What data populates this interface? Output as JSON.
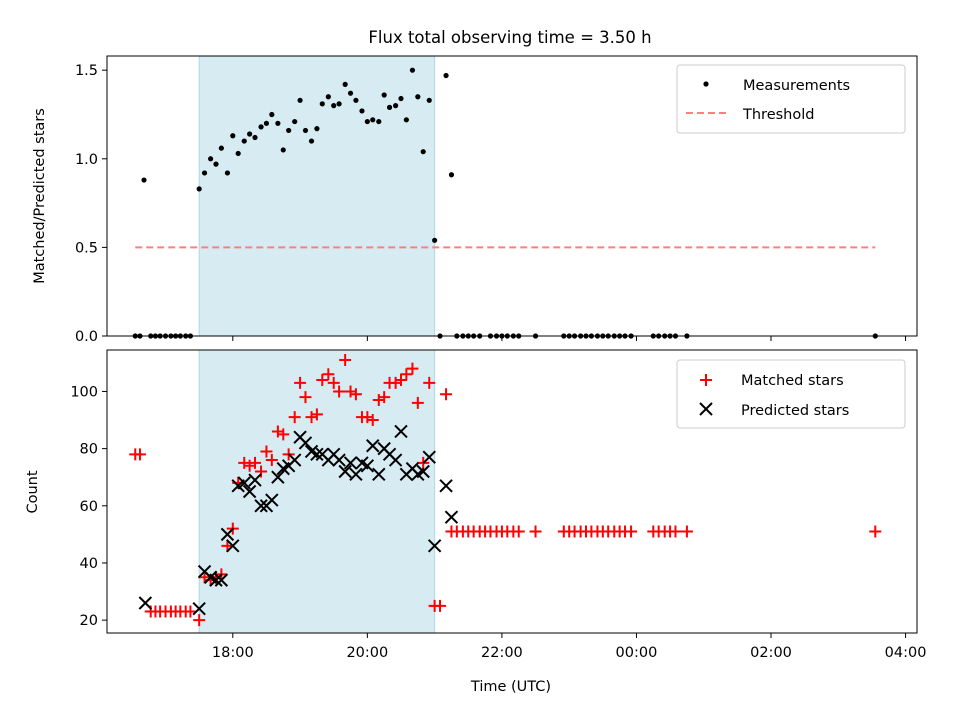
{
  "chart_data": [
    {
      "type": "scatter",
      "title": "Flux total observing time = 3.50 h",
      "xlabel": "",
      "ylabel": "Matched/Predicted stars",
      "xlim": [
        16.13,
        28.17
      ],
      "ylim": [
        0,
        1.58
      ],
      "yticks": [
        0,
        0.5,
        1.0,
        1.5
      ],
      "ytick_labels": [
        "0.0",
        "0.5",
        "1.0",
        "1.5"
      ],
      "xticks": [
        18,
        20,
        22,
        24,
        26,
        28
      ],
      "highlight_span": [
        17.5,
        21.0
      ],
      "threshold": {
        "name": "Threshold",
        "value": 0.5,
        "x_range": [
          16.55,
          27.55
        ],
        "color": "#ff7f7f"
      },
      "legend": [
        "Measurements",
        "Threshold"
      ],
      "series": [
        {
          "name": "Measurements",
          "x": [
            16.55,
            16.62,
            16.68,
            16.78,
            16.85,
            16.92,
            17.0,
            17.08,
            17.15,
            17.22,
            17.3,
            17.37,
            17.5,
            17.58,
            17.67,
            17.75,
            17.83,
            17.92,
            18.0,
            18.08,
            18.17,
            18.25,
            18.33,
            18.42,
            18.5,
            18.58,
            18.67,
            18.75,
            18.83,
            18.92,
            19.0,
            19.08,
            19.17,
            19.25,
            19.33,
            19.42,
            19.5,
            19.58,
            19.67,
            19.75,
            19.83,
            19.92,
            20.0,
            20.08,
            20.17,
            20.25,
            20.33,
            20.42,
            20.5,
            20.58,
            20.67,
            20.75,
            20.83,
            20.92,
            21.0,
            21.08,
            21.17,
            21.25,
            21.33,
            21.42,
            21.5,
            21.58,
            21.67,
            21.83,
            21.92,
            22.0,
            22.08,
            22.17,
            22.25,
            22.5,
            22.92,
            23.0,
            23.08,
            23.17,
            23.25,
            23.33,
            23.42,
            23.5,
            23.58,
            23.67,
            23.75,
            23.83,
            23.92,
            24.25,
            24.33,
            24.42,
            24.5,
            24.58,
            24.75,
            27.55
          ],
          "y": [
            0,
            0,
            0.88,
            0,
            0,
            0,
            0,
            0,
            0,
            0,
            0,
            0,
            0.83,
            0.92,
            1.0,
            0.97,
            1.06,
            0.92,
            1.13,
            1.03,
            1.1,
            1.14,
            1.12,
            1.18,
            1.2,
            1.25,
            1.2,
            1.05,
            1.16,
            1.21,
            1.33,
            1.16,
            1.1,
            1.17,
            1.31,
            1.35,
            1.3,
            1.31,
            1.42,
            1.37,
            1.33,
            1.27,
            1.21,
            1.22,
            1.21,
            1.36,
            1.29,
            1.3,
            1.34,
            1.22,
            1.5,
            1.35,
            1.04,
            1.33,
            0.54,
            0,
            1.47,
            0.91,
            0,
            0,
            0,
            0,
            0,
            0,
            0,
            0,
            0,
            0,
            0,
            0,
            0,
            0,
            0,
            0,
            0,
            0,
            0,
            0,
            0,
            0,
            0,
            0,
            0,
            0,
            0,
            0,
            0,
            0,
            0,
            0
          ]
        }
      ]
    },
    {
      "type": "scatter",
      "title": "",
      "xlabel": "Time (UTC)",
      "ylabel": "Count",
      "xlim": [
        16.13,
        28.17
      ],
      "ylim": [
        15.5,
        114.5
      ],
      "yticks": [
        20,
        40,
        60,
        80,
        100
      ],
      "ytick_labels": [
        "20",
        "40",
        "60",
        "80",
        "100"
      ],
      "xticks": [
        18,
        20,
        22,
        24,
        26,
        28
      ],
      "xtick_labels": [
        "18:00",
        "20:00",
        "22:00",
        "00:00",
        "02:00",
        "04:00"
      ],
      "highlight_span": [
        17.5,
        21.0
      ],
      "legend": [
        "Matched stars",
        "Predicted stars"
      ],
      "series": [
        {
          "name": "Matched stars",
          "marker": "+",
          "color": "#ff0000",
          "x": [
            16.55,
            16.62,
            16.78,
            16.85,
            16.92,
            17.0,
            17.08,
            17.15,
            17.22,
            17.3,
            17.37,
            17.5,
            17.58,
            17.67,
            17.75,
            17.83,
            17.92,
            18.0,
            18.08,
            18.17,
            18.25,
            18.33,
            18.42,
            18.5,
            18.58,
            18.67,
            18.75,
            18.83,
            18.92,
            19.0,
            19.08,
            19.17,
            19.25,
            19.33,
            19.42,
            19.5,
            19.58,
            19.67,
            19.75,
            19.83,
            19.92,
            20.0,
            20.08,
            20.17,
            20.25,
            20.33,
            20.42,
            20.5,
            20.58,
            20.67,
            20.75,
            20.83,
            20.92,
            21.0,
            21.08,
            21.17,
            21.25,
            21.33,
            21.42,
            21.5,
            21.58,
            21.67,
            21.75,
            21.83,
            21.92,
            22.0,
            22.08,
            22.17,
            22.25,
            22.5,
            22.92,
            23.0,
            23.08,
            23.17,
            23.25,
            23.33,
            23.42,
            23.5,
            23.58,
            23.67,
            23.75,
            23.83,
            23.92,
            24.25,
            24.33,
            24.42,
            24.5,
            24.58,
            24.75,
            27.55
          ],
          "y": [
            78,
            78,
            23,
            23,
            23,
            23,
            23,
            23,
            23,
            23,
            23,
            20,
            35,
            34,
            35,
            36,
            46,
            52,
            68,
            75,
            74,
            75,
            72,
            79,
            76,
            86,
            85,
            78,
            91,
            103,
            98,
            91,
            92,
            104,
            106,
            103,
            100,
            111,
            100,
            99,
            91,
            91,
            90,
            97,
            98,
            103,
            103,
            104,
            106,
            108,
            96,
            75,
            103,
            25,
            25,
            99,
            51,
            51,
            51,
            51,
            51,
            51,
            51,
            51,
            51,
            51,
            51,
            51,
            51,
            51,
            51,
            51,
            51,
            51,
            51,
            51,
            51,
            51,
            51,
            51,
            51,
            51,
            51,
            51,
            51,
            51,
            51,
            51,
            51,
            51
          ]
        },
        {
          "name": "Predicted stars",
          "marker": "x",
          "color": "#000000",
          "x": [
            16.7,
            17.5,
            17.58,
            17.67,
            17.75,
            17.83,
            17.92,
            18.0,
            18.08,
            18.17,
            18.25,
            18.33,
            18.42,
            18.5,
            18.58,
            18.67,
            18.75,
            18.83,
            18.92,
            19.0,
            19.08,
            19.17,
            19.25,
            19.33,
            19.42,
            19.5,
            19.58,
            19.67,
            19.75,
            19.83,
            19.92,
            20.0,
            20.08,
            20.17,
            20.25,
            20.33,
            20.42,
            20.5,
            20.58,
            20.67,
            20.75,
            20.83,
            20.92,
            21.0,
            21.17,
            21.25
          ],
          "y": [
            26,
            24,
            37,
            35,
            34,
            34,
            50,
            46,
            67,
            68,
            65,
            69,
            60,
            60,
            62,
            70,
            73,
            74,
            76,
            84,
            82,
            79,
            78,
            78,
            76,
            78,
            76,
            72,
            75,
            71,
            75,
            74,
            81,
            71,
            80,
            78,
            76,
            86,
            71,
            73,
            71,
            72,
            77,
            46,
            67,
            56
          ]
        }
      ]
    }
  ]
}
